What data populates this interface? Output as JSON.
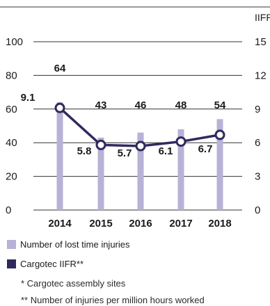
{
  "chart_data": {
    "type": "bar",
    "categories": [
      "2014",
      "2015",
      "2016",
      "2017",
      "2018"
    ],
    "left_axis": {
      "ylim": [
        0,
        100
      ],
      "ticks": [
        "0",
        "20",
        "40",
        "60",
        "80",
        "100"
      ]
    },
    "right_axis": {
      "label": "IIFR",
      "ylim": [
        0,
        15
      ],
      "ticks": [
        "0",
        "3",
        "6",
        "9",
        "12",
        "15"
      ]
    },
    "series": [
      {
        "name": "Number of lost time injuries",
        "kind": "bar",
        "axis": "left",
        "values": [
          64,
          43,
          46,
          48,
          54
        ],
        "labels": [
          "64",
          "43",
          "46",
          "48",
          "54"
        ]
      },
      {
        "name": "Cargotec IIFR**",
        "kind": "line",
        "axis": "right",
        "values": [
          9.1,
          5.8,
          5.7,
          6.1,
          6.7
        ],
        "labels": [
          "9.1",
          "5.8",
          "5.7",
          "6.1",
          "6.7"
        ]
      }
    ],
    "grid": "horizontal"
  },
  "colors": {
    "bar": "#b7b2d6",
    "line": "#2f2a5e",
    "grid": "#333333"
  },
  "notes": {
    "assembly": "* Cargotec assembly sites",
    "iifr_def": "** Number of injuries per million hours worked"
  }
}
